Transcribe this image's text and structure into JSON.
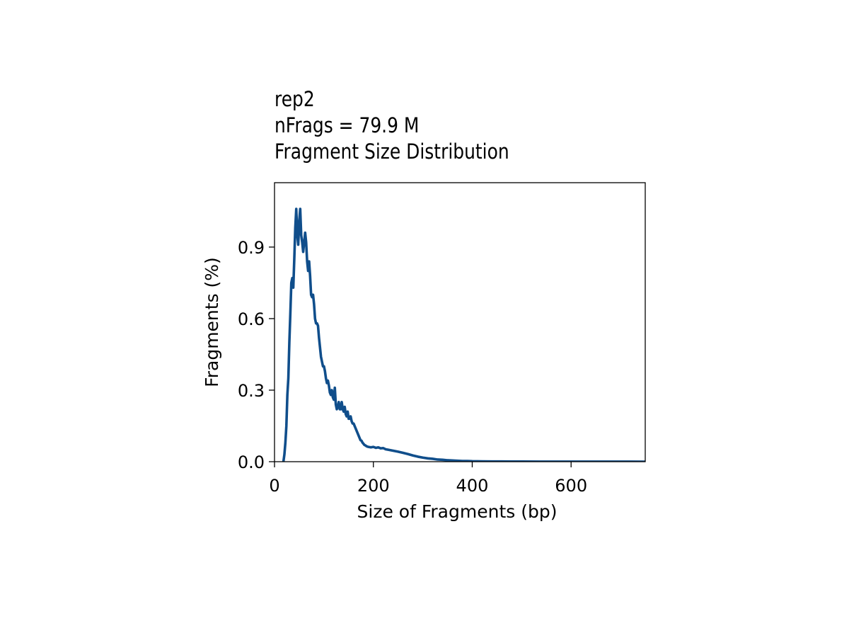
{
  "chart_data": {
    "type": "line",
    "title_lines": [
      "rep2",
      "nFrags = 79.9 M",
      "Fragment Size Distribution"
    ],
    "xlabel": "Size of Fragments (bp)",
    "ylabel": "Fragments (%)",
    "xlim": [
      0,
      750
    ],
    "ylim": [
      0,
      1.17
    ],
    "xticks": [
      0,
      200,
      400,
      600
    ],
    "xtick_labels": [
      "0",
      "200",
      "400",
      "600"
    ],
    "yticks": [
      0.0,
      0.3,
      0.6,
      0.9
    ],
    "ytick_labels": [
      "0.0",
      "0.3",
      "0.6",
      "0.9"
    ],
    "grid": false,
    "line_color": "#104e8b",
    "series": [
      {
        "x": [
          18,
          20,
          22,
          24,
          26,
          28,
          30,
          32,
          34,
          36,
          38,
          40,
          42,
          44,
          46,
          48,
          50,
          52,
          54,
          56,
          58,
          60,
          62,
          64,
          66,
          68,
          70,
          72,
          74,
          76,
          78,
          80,
          82,
          84,
          86,
          88,
          90,
          92,
          94,
          96,
          98,
          100,
          102,
          104,
          106,
          108,
          110,
          112,
          114,
          116,
          118,
          120,
          122,
          124,
          126,
          128,
          130,
          132,
          134,
          136,
          138,
          140,
          142,
          144,
          146,
          148,
          150,
          152,
          154,
          156,
          158,
          160,
          162,
          164,
          166,
          168,
          170,
          172,
          174,
          176,
          178,
          180,
          182,
          184,
          186,
          188,
          190,
          195,
          200,
          205,
          210,
          215,
          220,
          225,
          230,
          240,
          250,
          260,
          270,
          280,
          290,
          300,
          310,
          320,
          330,
          340,
          350,
          360,
          370,
          380,
          390,
          400,
          420,
          440,
          460,
          480,
          500,
          550,
          600,
          650,
          700,
          750
        ],
        "y": [
          0.0,
          0.03,
          0.08,
          0.15,
          0.28,
          0.35,
          0.5,
          0.62,
          0.75,
          0.77,
          0.73,
          0.85,
          0.98,
          1.06,
          0.95,
          0.91,
          1.01,
          1.06,
          0.95,
          0.92,
          0.88,
          0.92,
          0.96,
          0.92,
          0.84,
          0.8,
          0.84,
          0.78,
          0.7,
          0.69,
          0.7,
          0.66,
          0.6,
          0.58,
          0.58,
          0.57,
          0.52,
          0.48,
          0.44,
          0.42,
          0.4,
          0.4,
          0.38,
          0.35,
          0.33,
          0.34,
          0.32,
          0.29,
          0.28,
          0.3,
          0.27,
          0.26,
          0.31,
          0.24,
          0.22,
          0.23,
          0.25,
          0.22,
          0.22,
          0.25,
          0.22,
          0.21,
          0.23,
          0.2,
          0.19,
          0.21,
          0.18,
          0.18,
          0.19,
          0.17,
          0.16,
          0.16,
          0.15,
          0.14,
          0.13,
          0.12,
          0.11,
          0.1,
          0.09,
          0.088,
          0.08,
          0.075,
          0.07,
          0.068,
          0.065,
          0.063,
          0.062,
          0.06,
          0.062,
          0.058,
          0.06,
          0.056,
          0.057,
          0.052,
          0.05,
          0.046,
          0.042,
          0.037,
          0.032,
          0.026,
          0.021,
          0.017,
          0.014,
          0.012,
          0.009,
          0.008,
          0.006,
          0.005,
          0.004,
          0.003,
          0.003,
          0.002,
          0.0015,
          0.001,
          0.0008,
          0.0006,
          0.0005,
          0.0003,
          0.0002,
          0.0001,
          0.0001,
          0.0
        ]
      }
    ]
  }
}
